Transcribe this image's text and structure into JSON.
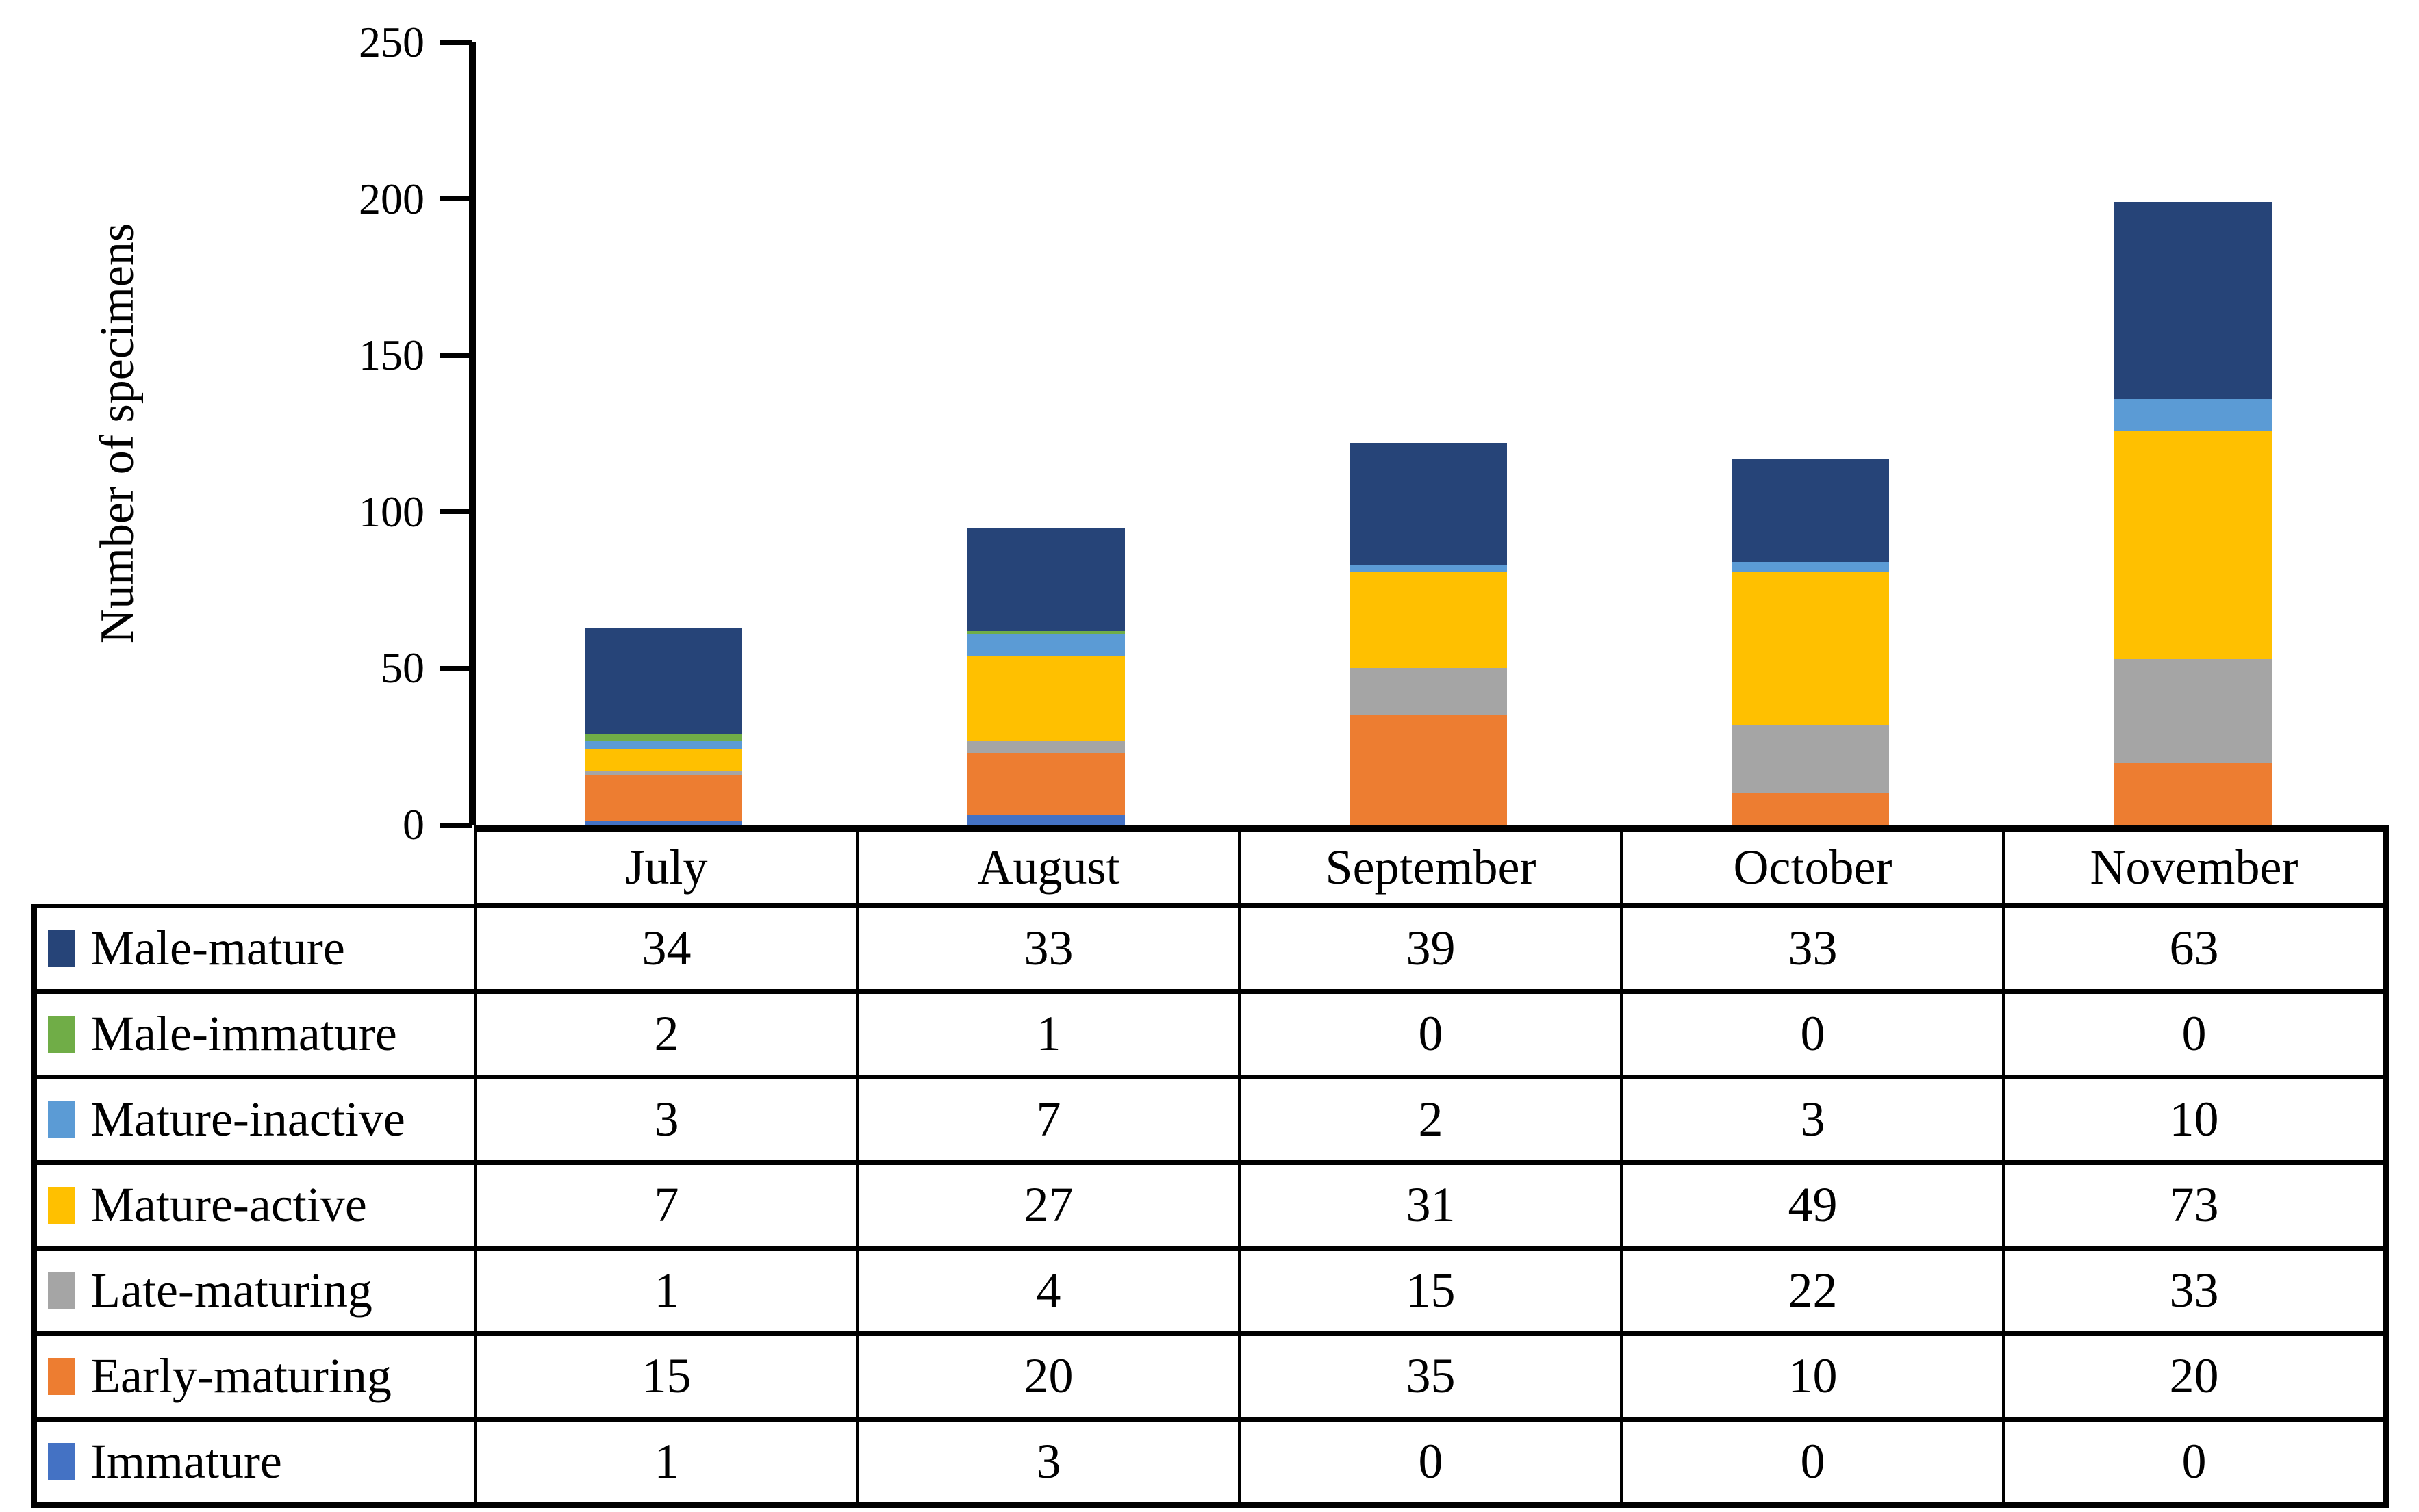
{
  "figure": {
    "background": "#FFFFFF",
    "text_color": "#000000"
  },
  "chart_data": {
    "type": "bar",
    "stacked": true,
    "title": "",
    "xlabel": "",
    "ylabel": "Number of specimens",
    "categories": [
      "July",
      "August",
      "September",
      "October",
      "November"
    ],
    "series": [
      {
        "name": "Male-mature",
        "color": "#264478",
        "values": [
          34,
          33,
          39,
          33,
          63
        ]
      },
      {
        "name": "Male-immature",
        "color": "#70AD47",
        "values": [
          2,
          1,
          0,
          0,
          0
        ]
      },
      {
        "name": "Mature-inactive",
        "color": "#5B9BD5",
        "values": [
          3,
          7,
          2,
          3,
          10
        ]
      },
      {
        "name": "Mature-active",
        "color": "#FFC000",
        "values": [
          7,
          27,
          31,
          49,
          73
        ]
      },
      {
        "name": "Late-maturing",
        "color": "#A5A5A5",
        "values": [
          1,
          4,
          15,
          22,
          33
        ]
      },
      {
        "name": "Early-maturing",
        "color": "#ED7D31",
        "values": [
          15,
          20,
          35,
          10,
          20
        ]
      },
      {
        "name": "Immature",
        "color": "#4472C4",
        "values": [
          1,
          3,
          0,
          0,
          0
        ]
      }
    ],
    "stack_order_bottom_to_top": [
      "Immature",
      "Early-maturing",
      "Late-maturing",
      "Mature-active",
      "Mature-inactive",
      "Male-immature",
      "Male-mature"
    ],
    "column_totals": [
      63,
      95,
      122,
      117,
      199
    ],
    "y_axis": {
      "min": 0,
      "max": 250,
      "tick_step": 50,
      "ticks": [
        0,
        50,
        100,
        150,
        200,
        250
      ]
    },
    "grid": false,
    "legend_position": "data-table-left-column"
  }
}
